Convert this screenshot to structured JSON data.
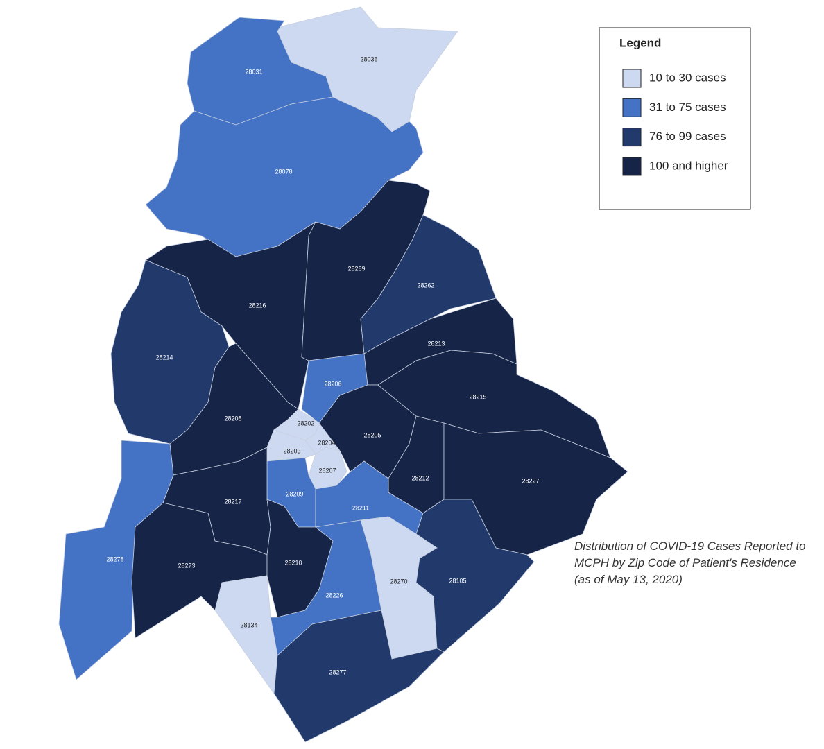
{
  "legend": {
    "title": "Legend",
    "items": [
      {
        "label": "10 to 30 cases",
        "color": "#ccd9f0"
      },
      {
        "label": "31 to 75 cases",
        "color": "#4472c4"
      },
      {
        "label": "76 to 99 cases",
        "color": "#213a6b"
      },
      {
        "label": "100 and higher",
        "color": "#162447"
      }
    ]
  },
  "caption": [
    "Distribution of COVID-19 Cases Reported to",
    "MCPH by Zip Code of Patient's Residence",
    "(as of May 13, 2020)"
  ],
  "regions": [
    {
      "zip": "28036",
      "color": "#ccd9f0"
    },
    {
      "zip": "28031",
      "color": "#4472c4"
    },
    {
      "zip": "28078",
      "color": "#4472c4"
    },
    {
      "zip": "28216",
      "color": "#162447"
    },
    {
      "zip": "28269",
      "color": "#162447"
    },
    {
      "zip": "28262",
      "color": "#213a6b"
    },
    {
      "zip": "28214",
      "color": "#213a6b"
    },
    {
      "zip": "28213",
      "color": "#162447"
    },
    {
      "zip": "28206",
      "color": "#4472c4"
    },
    {
      "zip": "28208",
      "color": "#162447"
    },
    {
      "zip": "28202",
      "color": "#ccd9f0"
    },
    {
      "zip": "28204",
      "color": "#ccd9f0"
    },
    {
      "zip": "28203",
      "color": "#ccd9f0"
    },
    {
      "zip": "28207",
      "color": "#ccd9f0"
    },
    {
      "zip": "28205",
      "color": "#162447"
    },
    {
      "zip": "28215",
      "color": "#162447"
    },
    {
      "zip": "28212",
      "color": "#162447"
    },
    {
      "zip": "28227",
      "color": "#162447"
    },
    {
      "zip": "28209",
      "color": "#4472c4"
    },
    {
      "zip": "28211",
      "color": "#4472c4"
    },
    {
      "zip": "28217",
      "color": "#162447"
    },
    {
      "zip": "28278",
      "color": "#4472c4"
    },
    {
      "zip": "28273",
      "color": "#162447"
    },
    {
      "zip": "28210",
      "color": "#162447"
    },
    {
      "zip": "28226",
      "color": "#4472c4"
    },
    {
      "zip": "28270",
      "color": "#ccd9f0"
    },
    {
      "zip": "28105",
      "color": "#213a6b"
    },
    {
      "zip": "28134",
      "color": "#ccd9f0"
    },
    {
      "zip": "28277",
      "color": "#213a6b"
    }
  ]
}
